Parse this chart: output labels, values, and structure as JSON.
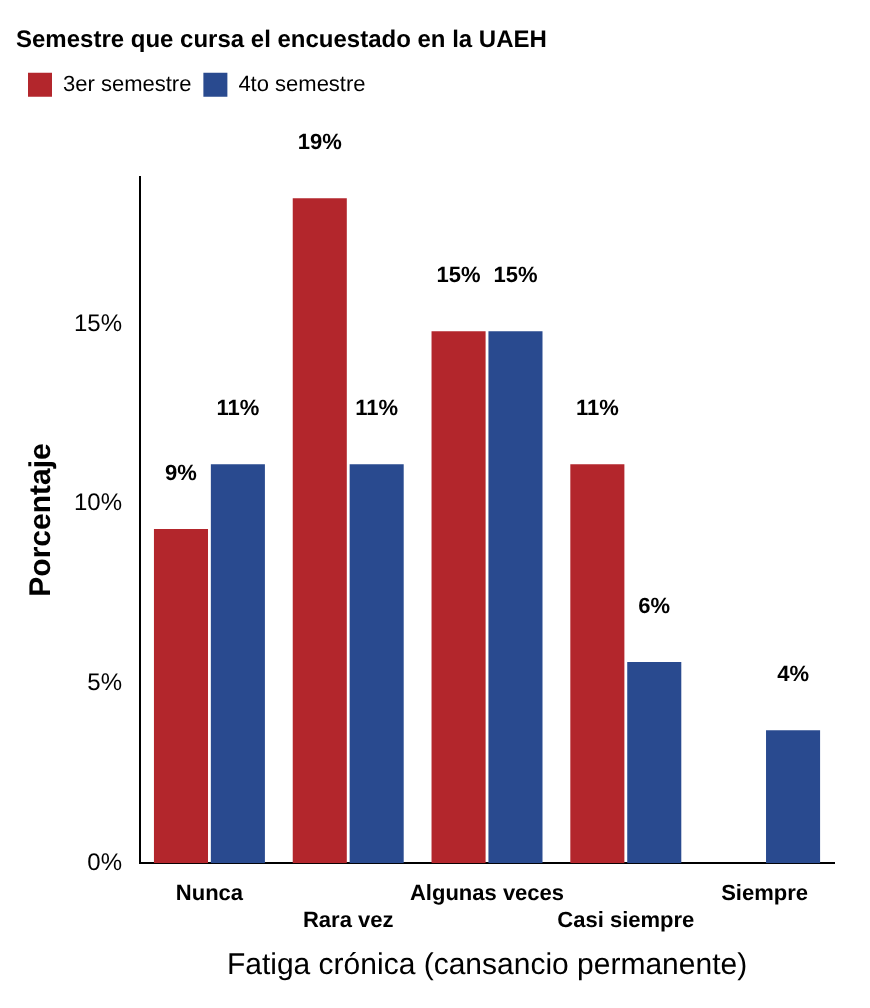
{
  "chart_data": {
    "type": "bar",
    "xlabel": "Fatiga crónica (cansancio permanente)",
    "ylabel": "Porcentaje",
    "legend_title": "Semestre que cursa el encuestado en la UAEH",
    "legend": "top",
    "categories": [
      "Nunca",
      "Rara vez",
      "Algunas veces",
      "Casi siempre",
      "Siempre"
    ],
    "series": [
      {
        "name": "3er semestre",
        "color": "#b3262c",
        "values": [
          9.3,
          18.5,
          14.8,
          11.1,
          null
        ],
        "value_labels": [
          "9%",
          "19%",
          "15%",
          "11%",
          null
        ]
      },
      {
        "name": "4to semestre",
        "color": "#294a8f",
        "values": [
          11.1,
          11.1,
          14.8,
          5.6,
          3.7
        ],
        "value_labels": [
          "11%",
          "11%",
          "15%",
          "6%",
          "4%"
        ]
      }
    ],
    "ylim": [
      0,
      19.1
    ],
    "yticks": [
      {
        "value": 0,
        "label": "0%"
      },
      {
        "value": 5,
        "label": "5%"
      },
      {
        "value": 10,
        "label": "10%"
      },
      {
        "value": 15,
        "label": "15%"
      }
    ],
    "grid": false
  }
}
